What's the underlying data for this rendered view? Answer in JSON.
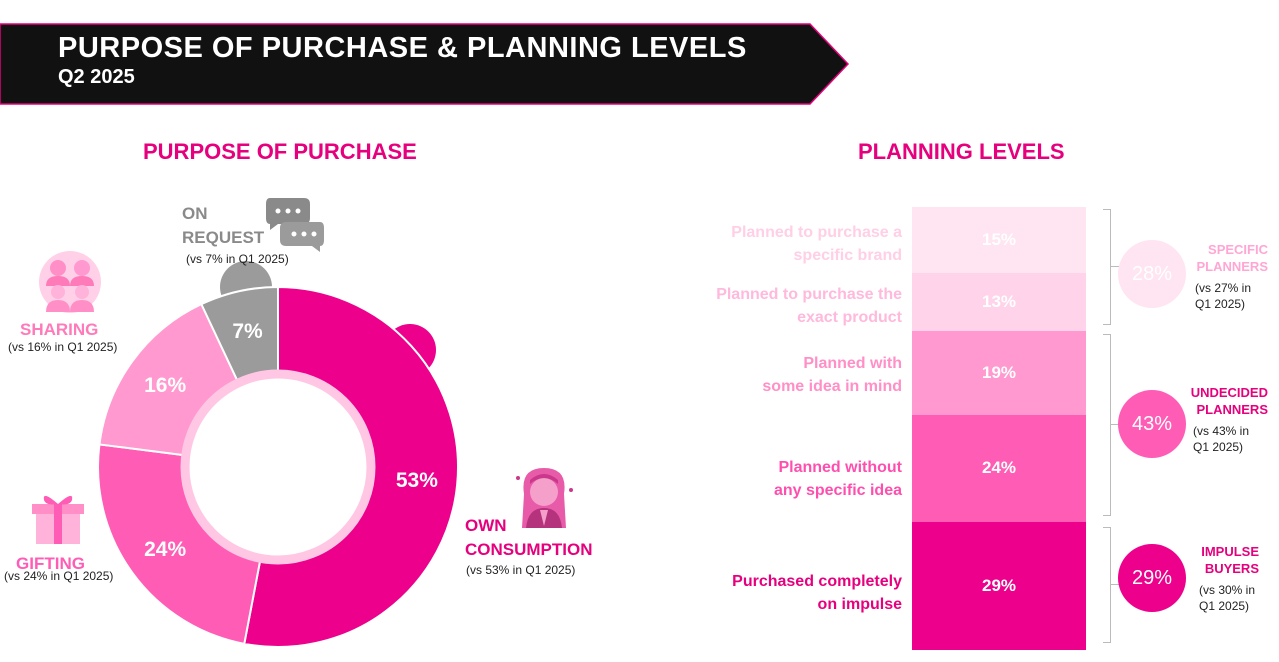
{
  "header": {
    "title": "PURPOSE OF PURCHASE & PLANNING LEVELS",
    "subtitle": "Q2 2025"
  },
  "colors": {
    "accent": "#e6007e",
    "banner": "#111111",
    "own": "#ec008c",
    "gifting": "#ff5cb5",
    "sharing": "#ff99cf",
    "request": "#9b9b9b",
    "planned_brand": "#ffe4f1",
    "planned_exact": "#ffd3ea",
    "planned_idea": "#ff99cf",
    "planned_no_idea": "#ff5cb5",
    "impulse": "#ec008c"
  },
  "purpose": {
    "title": "PURPOSE OF PURCHASE",
    "labels": {
      "own": "OWN\nCONSUMPTION",
      "gifting": "GIFTING",
      "sharing": "SHARING",
      "request": "ON\nREQUEST"
    },
    "notes": {
      "own": "(vs 53% in Q1 2025)",
      "gifting": "(vs 24% in Q1 2025)",
      "sharing": "(vs 16% in Q1 2025)",
      "request": "(vs 7% in Q1 2025)"
    },
    "icons": [
      "woman-praying-icon",
      "gift-icon",
      "people-sharing-icon",
      "chat-bubbles-icon"
    ]
  },
  "planning": {
    "title": "PLANNING LEVELS",
    "labels": {
      "brand": "Planned to purchase a\nspecific brand",
      "exact": "Planned to purchase the\nexact product",
      "idea": "Planned with\nsome idea in mind",
      "no_idea": "Planned without\nany specific idea",
      "impulse": "Purchased completely\non impulse"
    },
    "groups": {
      "specific": {
        "value": "28%",
        "name": "SPECIFIC\nPLANNERS",
        "note": "(vs 27% in\nQ1 2025)"
      },
      "undecided": {
        "value": "43%",
        "name": "UNDECIDED\nPLANNERS",
        "note": "(vs 43% in\nQ1 2025)"
      },
      "impulse": {
        "value": "29%",
        "name": "IMPULSE\nBUYERS",
        "note": "(vs 30% in\nQ1 2025)"
      }
    }
  },
  "chart_data": [
    {
      "type": "pie",
      "title": "PURPOSE OF PURCHASE",
      "categories": [
        "OWN CONSUMPTION",
        "GIFTING",
        "SHARING",
        "ON REQUEST"
      ],
      "values": [
        53,
        24,
        16,
        7
      ],
      "labels": [
        "53%",
        "24%",
        "16%",
        "7%"
      ]
    },
    {
      "type": "bar",
      "title": "PLANNING LEVELS",
      "stacked": true,
      "categories": [
        "Planned to purchase a specific brand",
        "Planned to purchase the exact product",
        "Planned with some idea in mind",
        "Planned without any specific idea",
        "Purchased completely on impulse"
      ],
      "values": [
        15,
        13,
        19,
        24,
        29
      ],
      "labels": [
        "15%",
        "13%",
        "19%",
        "24%",
        "29%"
      ]
    }
  ]
}
